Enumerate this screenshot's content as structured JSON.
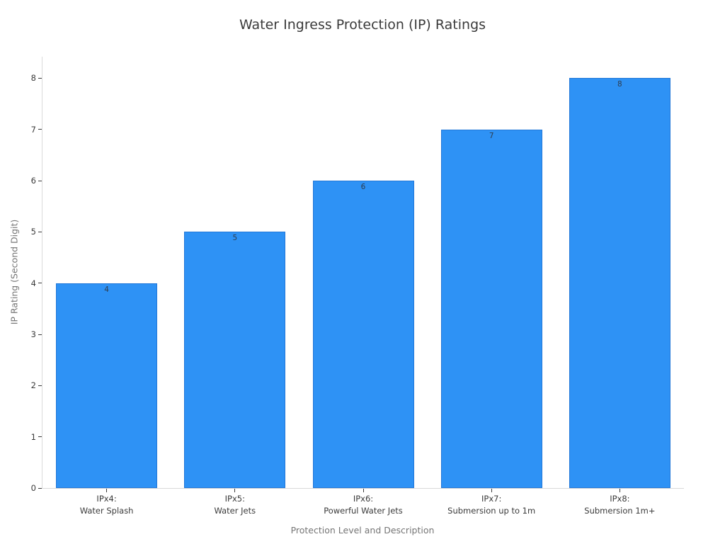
{
  "chart_data": {
    "type": "bar",
    "title": "Water Ingress Protection (IP) Ratings",
    "xlabel": "Protection Level and Description",
    "ylabel": "IP Rating (Second Digit)",
    "categories": [
      "IPx4:\nWater Splash",
      "IPx5:\nWater Jets",
      "IPx6:\nPowerful Water Jets",
      "IPx7:\nSubmersion up to 1m",
      "IPx8:\nSubmersion 1m+"
    ],
    "values": [
      4,
      5,
      6,
      7,
      8
    ],
    "bar_labels": [
      "4",
      "5",
      "6",
      "7",
      "8"
    ],
    "yticks": [
      0,
      1,
      2,
      3,
      4,
      5,
      6,
      7,
      8
    ],
    "ylim": [
      0,
      8.42
    ],
    "grid": false,
    "legend": false,
    "background_color": "#ffffff",
    "bar_color": "#2e92f5",
    "bar_edge_color": "#2277d8",
    "bar_label_color": "#2e3d4e",
    "axis_line_color": "#d9d9d9"
  }
}
